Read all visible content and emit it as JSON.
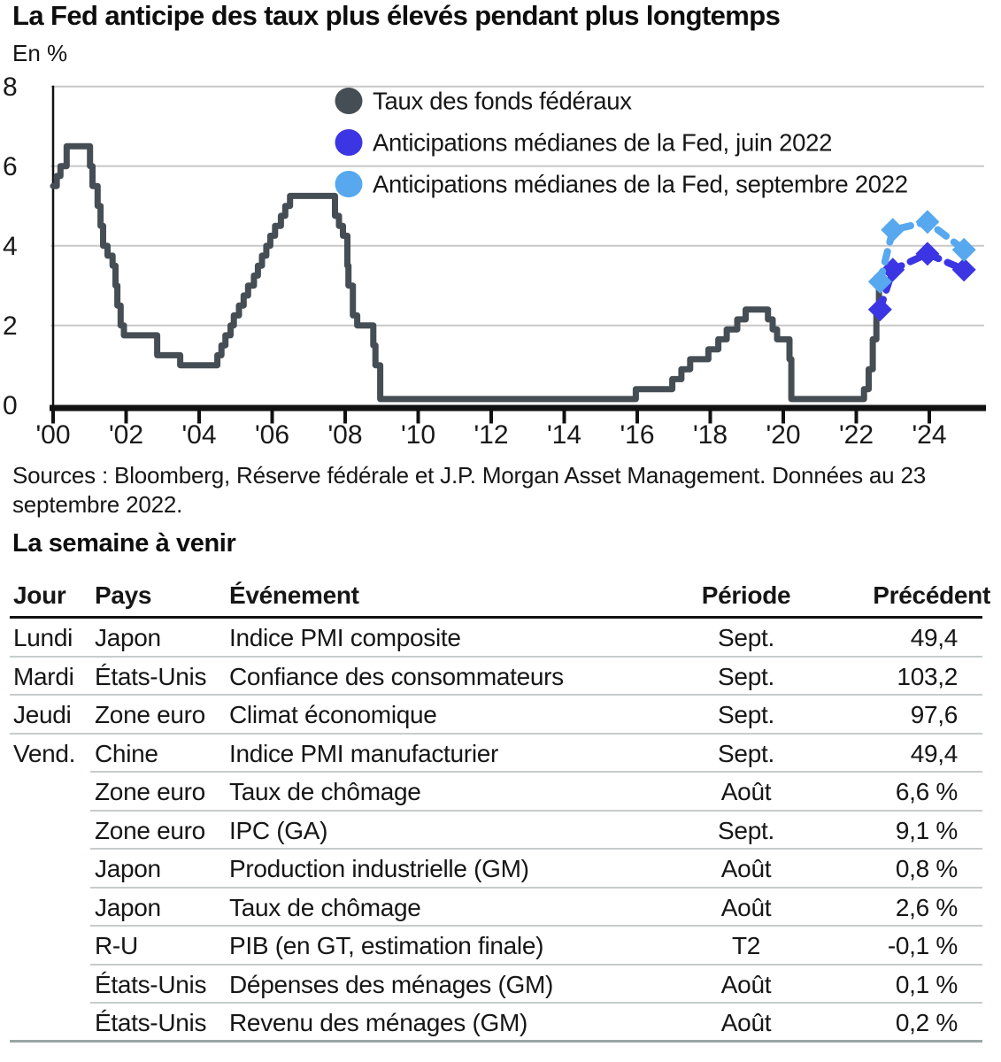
{
  "header": {
    "title": "La Fed anticipe des taux plus élevés pendant plus longtemps",
    "unit_label": "En %"
  },
  "chart_data": {
    "type": "line",
    "title": "La Fed anticipe des taux plus élevés pendant plus longtemps",
    "ylabel": "En %",
    "ylim": [
      0,
      8
    ],
    "yticks": [
      0,
      2,
      4,
      6,
      8
    ],
    "xticks": {
      "years": [
        2000,
        2002,
        2004,
        2006,
        2008,
        2010,
        2012,
        2014,
        2016,
        2018,
        2020,
        2022,
        2024
      ],
      "labels": [
        "'00",
        "'02",
        "'04",
        "'06",
        "'08",
        "'10",
        "'12",
        "'14",
        "'16",
        "'18",
        "'20",
        "'22",
        "'24"
      ]
    },
    "grid": "horizontal",
    "legend_position": "top-inside",
    "series": [
      {
        "name": "Taux des fonds fédéraux",
        "color": "#454e54",
        "style": "step-line",
        "marker": "none",
        "points": [
          [
            2000.0,
            5.5
          ],
          [
            2000.1,
            5.75
          ],
          [
            2000.2,
            6.0
          ],
          [
            2000.37,
            6.5
          ],
          [
            2001.01,
            6.0
          ],
          [
            2001.08,
            5.5
          ],
          [
            2001.22,
            5.0
          ],
          [
            2001.3,
            4.5
          ],
          [
            2001.37,
            4.0
          ],
          [
            2001.49,
            3.75
          ],
          [
            2001.63,
            3.5
          ],
          [
            2001.71,
            3.0
          ],
          [
            2001.76,
            2.5
          ],
          [
            2001.85,
            2.0
          ],
          [
            2001.94,
            1.75
          ],
          [
            2002.85,
            1.25
          ],
          [
            2003.48,
            1.0
          ],
          [
            2004.5,
            1.25
          ],
          [
            2004.61,
            1.5
          ],
          [
            2004.72,
            1.75
          ],
          [
            2004.86,
            2.0
          ],
          [
            2004.95,
            2.25
          ],
          [
            2005.09,
            2.5
          ],
          [
            2005.22,
            2.75
          ],
          [
            2005.34,
            3.0
          ],
          [
            2005.5,
            3.25
          ],
          [
            2005.61,
            3.5
          ],
          [
            2005.72,
            3.75
          ],
          [
            2005.84,
            4.0
          ],
          [
            2005.95,
            4.25
          ],
          [
            2006.08,
            4.5
          ],
          [
            2006.24,
            4.75
          ],
          [
            2006.36,
            5.0
          ],
          [
            2006.49,
            5.25
          ],
          [
            2007.72,
            4.75
          ],
          [
            2007.83,
            4.5
          ],
          [
            2007.94,
            4.25
          ],
          [
            2008.06,
            3.5
          ],
          [
            2008.09,
            3.0
          ],
          [
            2008.21,
            2.25
          ],
          [
            2008.33,
            2.0
          ],
          [
            2008.77,
            1.5
          ],
          [
            2008.83,
            1.0
          ],
          [
            2008.96,
            0.15
          ],
          [
            2015.96,
            0.4
          ],
          [
            2016.96,
            0.65
          ],
          [
            2017.21,
            0.9
          ],
          [
            2017.45,
            1.15
          ],
          [
            2017.95,
            1.4
          ],
          [
            2018.22,
            1.65
          ],
          [
            2018.45,
            1.9
          ],
          [
            2018.74,
            2.15
          ],
          [
            2018.97,
            2.4
          ],
          [
            2019.58,
            2.15
          ],
          [
            2019.71,
            1.9
          ],
          [
            2019.83,
            1.65
          ],
          [
            2020.17,
            1.15
          ],
          [
            2020.22,
            0.15
          ],
          [
            2022.21,
            0.4
          ],
          [
            2022.34,
            0.9
          ],
          [
            2022.45,
            1.65
          ],
          [
            2022.55,
            2.4
          ],
          [
            2022.62,
            3.1
          ]
        ]
      },
      {
        "name": "Anticipations médianes de la Fed, juin 2022",
        "color": "#3c35e4",
        "style": "dashed-line",
        "marker": "diamond",
        "points": [
          [
            2022.65,
            2.4
          ],
          [
            2023.0,
            3.4
          ],
          [
            2023.95,
            3.8
          ],
          [
            2024.95,
            3.4
          ]
        ]
      },
      {
        "name": "Anticipations médianes de la Fed, septembre 2022",
        "color": "#57a8ee",
        "style": "dashed-line",
        "marker": "diamond",
        "points": [
          [
            2022.65,
            3.1
          ],
          [
            2023.0,
            4.4
          ],
          [
            2023.95,
            4.6
          ],
          [
            2024.95,
            3.9
          ]
        ]
      }
    ]
  },
  "sources": "Sources : Bloomberg, Réserve fédérale et J.P. Morgan Asset Management. Données au 23 septembre 2022.",
  "week_ahead": {
    "title": "La semaine à venir",
    "columns": [
      "Jour",
      "Pays",
      "Événement",
      "Période",
      "Précédent"
    ],
    "rows": [
      {
        "jour": "Lundi",
        "pays": "Japon",
        "evenement": "Indice PMI composite",
        "periode": "Sept.",
        "precedent": "49,4"
      },
      {
        "jour": "Mardi",
        "pays": "États-Unis",
        "evenement": "Confiance des consommateurs",
        "periode": "Sept.",
        "precedent": "103,2"
      },
      {
        "jour": "Jeudi",
        "pays": "Zone euro",
        "evenement": "Climat économique",
        "periode": "Sept.",
        "precedent": "97,6"
      },
      {
        "jour": "Vend.",
        "pays": "Chine",
        "evenement": "Indice PMI manufacturier",
        "periode": "Sept.",
        "precedent": "49,4"
      },
      {
        "jour": "",
        "pays": "Zone euro",
        "evenement": "Taux de chômage",
        "periode": "Août",
        "precedent": "6,6 %"
      },
      {
        "jour": "",
        "pays": "Zone euro",
        "evenement": "IPC (GA)",
        "periode": "Sept.",
        "precedent": "9,1 %"
      },
      {
        "jour": "",
        "pays": "Japon",
        "evenement": "Production industrielle (GM)",
        "periode": "Août",
        "precedent": "0,8 %"
      },
      {
        "jour": "",
        "pays": "Japon",
        "evenement": "Taux de chômage",
        "periode": "Août",
        "precedent": "2,6 %"
      },
      {
        "jour": "",
        "pays": "R-U",
        "evenement": "PIB (en GT, estimation finale)",
        "periode": "T2",
        "precedent": "-0,1 %"
      },
      {
        "jour": "",
        "pays": "États-Unis",
        "evenement": "Dépenses des ménages (GM)",
        "periode": "Août",
        "precedent": "0,1 %"
      },
      {
        "jour": "",
        "pays": "États-Unis",
        "evenement": "Revenu des ménages (GM)",
        "periode": "Août",
        "precedent": "0,2 %"
      }
    ]
  }
}
